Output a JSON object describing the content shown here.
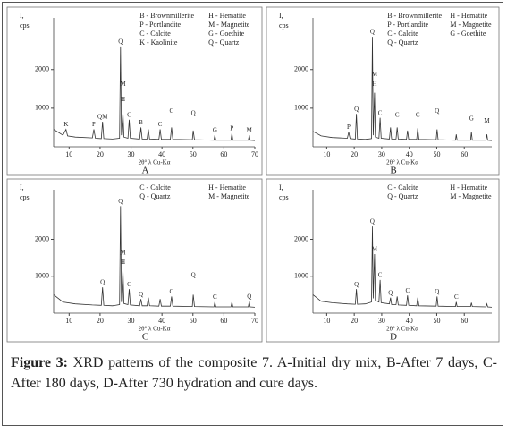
{
  "chart_data": [
    {
      "type": "line",
      "panel": "A",
      "ylabel": [
        "I,",
        "cps"
      ],
      "xlabel": "2θ° λ Cu-Kα",
      "legend": [
        "B - Brownmillerite",
        "H - Hematite",
        "P - Portlandite",
        "M - Magnetite",
        "C - Calcite",
        "G - Goethite",
        "K - Kaolinite",
        "Q - Quartz"
      ],
      "xlim": [
        5,
        70
      ],
      "xticks": [
        10,
        20,
        30,
        40,
        50,
        60,
        70
      ],
      "ylim": [
        0,
        3200
      ],
      "yticks": [
        1000,
        2000
      ],
      "color": "#333333",
      "x": [
        5,
        8,
        9,
        9.5,
        12,
        17.5,
        18,
        18.5,
        20.4,
        20.8,
        21.2,
        24,
        26.3,
        26.6,
        26.9,
        27.4,
        27.7,
        29,
        29.4,
        29.8,
        32.8,
        33.2,
        33.6,
        35.2,
        35.6,
        36,
        39,
        39.4,
        39.8,
        42.7,
        43.1,
        43.5,
        49.8,
        50.1,
        50.5,
        56.8,
        57.1,
        57.4,
        60,
        62.3,
        62.6,
        62.9,
        67.9,
        68.2,
        68.5,
        70
      ],
      "values": [
        450,
        300,
        450,
        280,
        250,
        230,
        450,
        220,
        210,
        650,
        210,
        200,
        220,
        2600,
        300,
        900,
        250,
        220,
        700,
        220,
        200,
        500,
        200,
        200,
        450,
        200,
        190,
        450,
        190,
        190,
        500,
        190,
        180,
        420,
        180,
        170,
        300,
        170,
        170,
        170,
        350,
        170,
        170,
        300,
        170,
        160
      ],
      "annotations": [
        {
          "text": "K",
          "x": 9,
          "y": 450
        },
        {
          "text": "P",
          "x": 18,
          "y": 450
        },
        {
          "text": "QM",
          "x": 20.8,
          "y": 650
        },
        {
          "text": "Q",
          "x": 26.6,
          "y": 2600
        },
        {
          "text": "M",
          "x": 27.4,
          "y": 1500
        },
        {
          "text": "H",
          "x": 27.4,
          "y": 1100
        },
        {
          "text": "C",
          "x": 29.4,
          "y": 700
        },
        {
          "text": "B",
          "x": 33.2,
          "y": 500
        },
        {
          "text": "C",
          "x": 39.4,
          "y": 450
        },
        {
          "text": "C",
          "x": 43.1,
          "y": 800
        },
        {
          "text": "Q",
          "x": 50.1,
          "y": 750
        },
        {
          "text": "G",
          "x": 57.1,
          "y": 300
        },
        {
          "text": "P",
          "x": 62.6,
          "y": 350
        },
        {
          "text": "M",
          "x": 68.2,
          "y": 300
        }
      ]
    },
    {
      "type": "line",
      "panel": "B",
      "ylabel": [
        "I,",
        "cps"
      ],
      "xlabel": "2θ° λ Cu-Kα",
      "legend": [
        "B - Brownmillerite",
        "H - Hematite",
        "P - Portlandite",
        "M - Magnetite",
        "C - Calcite",
        "G - Goethite",
        "Q - Quartz"
      ],
      "xlim": [
        5,
        70
      ],
      "xticks": [
        10,
        20,
        30,
        40,
        50,
        60
      ],
      "ylim": [
        0,
        3200
      ],
      "yticks": [
        1000,
        2000
      ],
      "color": "#333333",
      "x": [
        5,
        8,
        12,
        17.5,
        18,
        18.5,
        20.4,
        20.8,
        21.2,
        24,
        26.3,
        26.6,
        26.9,
        27.4,
        27.7,
        29,
        29.4,
        29.8,
        32.8,
        33.2,
        33.6,
        35.2,
        35.6,
        36,
        39,
        39.4,
        39.8,
        42.7,
        43.1,
        43.5,
        49.8,
        50.1,
        50.5,
        56.8,
        57.1,
        57.4,
        60,
        62.3,
        62.6,
        62.9,
        67.9,
        68.2,
        68.5,
        70
      ],
      "values": [
        400,
        280,
        240,
        220,
        380,
        210,
        200,
        850,
        200,
        190,
        210,
        2850,
        300,
        1400,
        250,
        220,
        750,
        220,
        200,
        500,
        200,
        200,
        500,
        200,
        190,
        420,
        190,
        190,
        480,
        190,
        180,
        450,
        180,
        170,
        320,
        170,
        170,
        170,
        380,
        170,
        170,
        320,
        170,
        160
      ],
      "annotations": [
        {
          "text": "P",
          "x": 18,
          "y": 380
        },
        {
          "text": "Q",
          "x": 20.8,
          "y": 850
        },
        {
          "text": "Q",
          "x": 26.6,
          "y": 2850
        },
        {
          "text": "M",
          "x": 27.4,
          "y": 1750
        },
        {
          "text": "H",
          "x": 27.4,
          "y": 1500
        },
        {
          "text": "C",
          "x": 29.4,
          "y": 750
        },
        {
          "text": "C",
          "x": 35.6,
          "y": 700
        },
        {
          "text": "C",
          "x": 43.1,
          "y": 700
        },
        {
          "text": "Q",
          "x": 50.1,
          "y": 800
        },
        {
          "text": "G",
          "x": 62.6,
          "y": 600
        },
        {
          "text": "M",
          "x": 68.2,
          "y": 550
        }
      ]
    },
    {
      "type": "line",
      "panel": "C",
      "ylabel": [
        "I,",
        "cps"
      ],
      "xlabel": "2θ° λ Cu-Kα",
      "legend": [
        "C - Calcite",
        "H - Hematite",
        "Q - Quartz",
        "M - Magnetite"
      ],
      "xlim": [
        5,
        70
      ],
      "xticks": [
        10,
        20,
        30,
        40,
        50,
        60,
        70
      ],
      "ylim": [
        0,
        3200
      ],
      "yticks": [
        1000,
        2000
      ],
      "color": "#333333",
      "x": [
        5,
        8,
        12,
        17.5,
        20.4,
        20.8,
        21.2,
        24,
        26.3,
        26.6,
        26.9,
        27.4,
        27.7,
        29,
        29.4,
        29.8,
        32.8,
        33.2,
        33.6,
        35.2,
        35.6,
        36,
        39,
        39.4,
        39.8,
        42.7,
        43.1,
        43.5,
        49.8,
        50.1,
        50.5,
        56.8,
        57.1,
        57.4,
        60,
        62.3,
        62.6,
        62.9,
        67.9,
        68.2,
        68.5,
        70
      ],
      "values": [
        500,
        300,
        250,
        220,
        210,
        700,
        210,
        200,
        230,
        2900,
        300,
        1200,
        260,
        230,
        650,
        220,
        200,
        380,
        200,
        200,
        420,
        200,
        190,
        380,
        190,
        190,
        450,
        190,
        180,
        500,
        180,
        170,
        300,
        170,
        170,
        170,
        300,
        170,
        170,
        320,
        170,
        160
      ],
      "annotations": [
        {
          "text": "Q",
          "x": 20.8,
          "y": 700
        },
        {
          "text": "Q",
          "x": 26.6,
          "y": 2900
        },
        {
          "text": "M",
          "x": 27.4,
          "y": 1500
        },
        {
          "text": "H",
          "x": 27.4,
          "y": 1250
        },
        {
          "text": "C",
          "x": 29.4,
          "y": 650
        },
        {
          "text": "Q",
          "x": 33.2,
          "y": 380
        },
        {
          "text": "C",
          "x": 43.1,
          "y": 450
        },
        {
          "text": "Q",
          "x": 50.1,
          "y": 900
        },
        {
          "text": "C",
          "x": 57.1,
          "y": 300
        },
        {
          "text": "Q",
          "x": 68.2,
          "y": 320
        }
      ]
    },
    {
      "type": "line",
      "panel": "D",
      "ylabel": [
        "I,",
        "cps"
      ],
      "xlabel": "2θ° λ Cu-Kα",
      "legend": [
        "C - Calcite",
        "H - Hematite",
        "Q - Quartz",
        "M - Magnetite"
      ],
      "xlim": [
        5,
        70
      ],
      "xticks": [
        10,
        20,
        30,
        40,
        50,
        60
      ],
      "ylim": [
        0,
        3200
      ],
      "yticks": [
        1000,
        2000
      ],
      "color": "#333333",
      "x": [
        5,
        8,
        12,
        17.5,
        20.4,
        20.8,
        21.2,
        24,
        26.3,
        26.6,
        26.9,
        27.4,
        27.7,
        29,
        29.4,
        29.8,
        32.8,
        33.2,
        33.6,
        35.2,
        35.6,
        36,
        39,
        39.4,
        39.8,
        42.7,
        43.1,
        43.5,
        49.8,
        50.1,
        50.5,
        56.8,
        57.1,
        57.4,
        60,
        62.3,
        62.6,
        62.9,
        67.9,
        68.2,
        68.5,
        70
      ],
      "values": [
        500,
        320,
        280,
        250,
        240,
        650,
        240,
        250,
        300,
        2350,
        400,
        1600,
        350,
        300,
        900,
        280,
        250,
        420,
        230,
        230,
        450,
        220,
        210,
        480,
        210,
        200,
        420,
        200,
        190,
        450,
        190,
        180,
        300,
        180,
        180,
        180,
        280,
        180,
        170,
        250,
        170,
        160
      ],
      "annotations": [
        {
          "text": "Q",
          "x": 20.8,
          "y": 650
        },
        {
          "text": "Q",
          "x": 26.6,
          "y": 2350
        },
        {
          "text": "M",
          "x": 27.4,
          "y": 1600
        },
        {
          "text": "C",
          "x": 29.4,
          "y": 900
        },
        {
          "text": "Q",
          "x": 33.2,
          "y": 420
        },
        {
          "text": "C",
          "x": 39.4,
          "y": 480
        },
        {
          "text": "Q",
          "x": 50.1,
          "y": 450
        },
        {
          "text": "C",
          "x": 57.1,
          "y": 300
        }
      ]
    }
  ],
  "caption": {
    "label": "Figure 3:",
    "text": "XRD patterns of the composite 7. A-Initial dry mix, B-After 7 days, C-After 180 days, D-After 730 hydration and cure days."
  }
}
